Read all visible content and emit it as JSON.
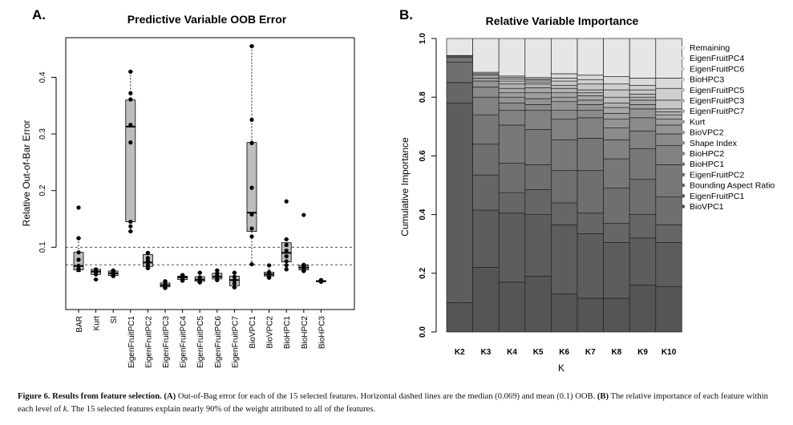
{
  "chart_data": [
    {
      "type": "box",
      "panel_label": "A.",
      "title": "Predictive Variable OOB Error",
      "ylabel": "Relative Out-of-Bar Error",
      "xlabel": "",
      "ylim": [
        0,
        0.47
      ],
      "yticks": [
        0.1,
        0.2,
        0.3,
        0.4
      ],
      "ytick_labels": [
        "0.1",
        "0.2",
        "0.3",
        "0.4"
      ],
      "hlines": [
        {
          "y": 0.1,
          "style": "dashed"
        },
        {
          "y": 0.069,
          "style": "dashed"
        }
      ],
      "grid": false,
      "categories": [
        "BAR",
        "Kurt",
        "SI",
        "EigenFruitPC1",
        "EigenFruitPC2",
        "EigenFruitPC3",
        "EigenFruitPC4",
        "EigenFruitPC5",
        "EigenFruitPC6",
        "EigenFruitPC7",
        "BioVPC1",
        "BioVPC2",
        "BioHPC1",
        "BioHPC2",
        "BioHPC3"
      ],
      "boxes": [
        {
          "q1": 0.06,
          "median": 0.067,
          "q3": 0.091,
          "whisker_low": 0.057,
          "whisker_high": 0.116,
          "points": [
            0.17,
            0.116,
            0.091,
            0.078,
            0.067,
            0.062,
            0.06
          ]
        },
        {
          "q1": 0.052,
          "median": 0.057,
          "q3": 0.061,
          "whisker_low": 0.043,
          "whisker_high": 0.061,
          "points": [
            0.061,
            0.058,
            0.057,
            0.052,
            0.043
          ]
        },
        {
          "q1": 0.05,
          "median": 0.054,
          "q3": 0.058,
          "whisker_low": 0.049,
          "whisker_high": 0.059,
          "points": [
            0.059,
            0.056,
            0.054,
            0.051,
            0.049
          ]
        },
        {
          "q1": 0.145,
          "median": 0.313,
          "q3": 0.36,
          "whisker_low": 0.128,
          "whisker_high": 0.41,
          "points": [
            0.41,
            0.372,
            0.361,
            0.316,
            0.285,
            0.145,
            0.137,
            0.128
          ]
        },
        {
          "q1": 0.066,
          "median": 0.073,
          "q3": 0.087,
          "whisker_low": 0.063,
          "whisker_high": 0.09,
          "points": [
            0.09,
            0.081,
            0.076,
            0.073,
            0.068,
            0.063
          ]
        },
        {
          "q1": 0.03,
          "median": 0.033,
          "q3": 0.037,
          "whisker_low": 0.028,
          "whisker_high": 0.04,
          "points": [
            0.04,
            0.035,
            0.033,
            0.03,
            0.028
          ]
        },
        {
          "q1": 0.043,
          "median": 0.047,
          "q3": 0.049,
          "whisker_low": 0.04,
          "whisker_high": 0.051,
          "points": [
            0.051,
            0.048,
            0.046,
            0.043,
            0.041
          ]
        },
        {
          "q1": 0.04,
          "median": 0.043,
          "q3": 0.048,
          "whisker_low": 0.038,
          "whisker_high": 0.055,
          "points": [
            0.055,
            0.047,
            0.043,
            0.04,
            0.038
          ]
        },
        {
          "q1": 0.044,
          "median": 0.048,
          "q3": 0.054,
          "whisker_low": 0.042,
          "whisker_high": 0.059,
          "points": [
            0.059,
            0.054,
            0.05,
            0.046,
            0.042
          ]
        },
        {
          "q1": 0.032,
          "median": 0.042,
          "q3": 0.049,
          "whisker_low": 0.029,
          "whisker_high": 0.055,
          "points": [
            0.055,
            0.048,
            0.042,
            0.036,
            0.029
          ]
        },
        {
          "q1": 0.128,
          "median": 0.161,
          "q3": 0.285,
          "whisker_low": 0.07,
          "whisker_high": 0.455,
          "points": [
            0.455,
            0.325,
            0.284,
            0.205,
            0.158,
            0.133,
            0.119,
            0.07
          ]
        },
        {
          "q1": 0.049,
          "median": 0.052,
          "q3": 0.056,
          "whisker_low": 0.046,
          "whisker_high": 0.068,
          "points": [
            0.068,
            0.056,
            0.052,
            0.049,
            0.046
          ]
        },
        {
          "q1": 0.074,
          "median": 0.09,
          "q3": 0.108,
          "whisker_low": 0.061,
          "whisker_high": 0.114,
          "points": [
            0.181,
            0.114,
            0.104,
            0.094,
            0.084,
            0.075,
            0.068,
            0.061
          ]
        },
        {
          "q1": 0.06,
          "median": 0.064,
          "q3": 0.068,
          "whisker_low": 0.058,
          "whisker_high": 0.069,
          "points": [
            0.157,
            0.069,
            0.066,
            0.063,
            0.06,
            0.058
          ]
        },
        {
          "q1": 0.039,
          "median": 0.04,
          "q3": 0.041,
          "whisker_low": 0.039,
          "whisker_high": 0.042,
          "points": [
            0.042,
            0.04,
            0.039
          ]
        }
      ]
    },
    {
      "type": "stacked_bar",
      "panel_label": "B.",
      "title": "Relative Variable Importance",
      "xlabel": "K",
      "ylabel": "Cumulative Importance",
      "ylim": [
        0,
        1.0
      ],
      "yticks": [
        0.0,
        0.2,
        0.4,
        0.6,
        0.8,
        1.0
      ],
      "ytick_labels": [
        "0.0",
        "0.2",
        "0.4",
        "0.6",
        "0.8",
        "1.0"
      ],
      "grid": false,
      "legend_position": "right",
      "categories": [
        "K2",
        "K3",
        "K4",
        "K5",
        "K6",
        "K7",
        "K8",
        "K9",
        "K10"
      ],
      "legend": [
        "Remaining",
        "EigenFruitPC4",
        "EigenFruitPC6",
        "BioHPC3",
        "EigenFruitPC5",
        "EigenFruitPC3",
        "EigenFruitPC7",
        "Kurt",
        "BioVPC2",
        "Shape Index",
        "BioHPC2",
        "BioHPC1",
        "EigenFruitPC2",
        "Bounding Aspect Ratio",
        "EigenFruitPC1",
        "BioVPC1"
      ],
      "series_order_bottom_to_top": [
        "BioVPC1",
        "EigenFruitPC1",
        "Bounding Aspect Ratio",
        "EigenFruitPC2",
        "BioHPC1",
        "BioHPC2",
        "Shape Index",
        "BioVPC2",
        "Kurt",
        "EigenFruitPC7",
        "EigenFruitPC3",
        "EigenFruitPC5",
        "BioHPC3",
        "EigenFruitPC6",
        "EigenFruitPC4",
        "Remaining"
      ],
      "colors": {
        "BioVPC1": "#555555",
        "EigenFruitPC1": "#5d5d5d",
        "Bounding Aspect Ratio": "#666666",
        "EigenFruitPC2": "#6f6f6f",
        "BioHPC1": "#787878",
        "BioHPC2": "#828282",
        "Shape Index": "#8b8b8b",
        "BioVPC2": "#949494",
        "Kurt": "#9e9e9e",
        "EigenFruitPC7": "#a8a8a8",
        "EigenFruitPC3": "#b2b2b2",
        "EigenFruitPC5": "#bcbcbc",
        "BioHPC3": "#c6c6c6",
        "EigenFruitPC6": "#d0d0d0",
        "EigenFruitPC4": "#dadada",
        "Remaining": "#e6e6e6"
      },
      "cumulative_boundaries": [
        [
          0.1,
          0.78,
          0.85,
          0.92,
          0.935,
          0.94,
          0.942
        ],
        [
          0.22,
          0.415,
          0.535,
          0.64,
          0.74,
          0.8,
          0.835,
          0.855,
          0.865,
          0.875,
          0.88,
          0.885
        ],
        [
          0.17,
          0.405,
          0.475,
          0.575,
          0.705,
          0.755,
          0.78,
          0.8,
          0.815,
          0.83,
          0.845,
          0.855,
          0.862,
          0.867,
          0.872
        ],
        [
          0.19,
          0.4,
          0.485,
          0.57,
          0.69,
          0.755,
          0.775,
          0.795,
          0.815,
          0.832,
          0.845,
          0.852,
          0.858,
          0.862,
          0.867
        ],
        [
          0.13,
          0.365,
          0.44,
          0.55,
          0.655,
          0.725,
          0.755,
          0.785,
          0.8,
          0.815,
          0.83,
          0.84,
          0.855,
          0.865,
          0.88
        ],
        [
          0.115,
          0.335,
          0.405,
          0.55,
          0.66,
          0.73,
          0.755,
          0.775,
          0.79,
          0.805,
          0.815,
          0.825,
          0.845,
          0.86,
          0.875
        ],
        [
          0.115,
          0.305,
          0.37,
          0.49,
          0.59,
          0.655,
          0.695,
          0.725,
          0.745,
          0.765,
          0.78,
          0.8,
          0.825,
          0.845,
          0.87
        ],
        [
          0.16,
          0.32,
          0.4,
          0.52,
          0.625,
          0.685,
          0.73,
          0.76,
          0.775,
          0.79,
          0.8,
          0.81,
          0.825,
          0.84,
          0.865
        ],
        [
          0.155,
          0.305,
          0.365,
          0.46,
          0.57,
          0.635,
          0.675,
          0.705,
          0.725,
          0.74,
          0.75,
          0.76,
          0.79,
          0.83,
          0.865
        ]
      ]
    }
  ],
  "caption": {
    "label": "Figure 6.",
    "title": "Results from feature selection.",
    "part_a_label": "(A)",
    "part_a_text_1": "Out-of-Bag error for each of the 15 selected features. Horizontal dashed lines are the median (",
    "median_value": "0.069",
    "part_a_text_2": ") and mean (",
    "mean_value": "0.1",
    "part_a_text_3": ") OOB.",
    "part_b_label": "(B)",
    "part_b_text_1": "The relative importance of each feature within each level of",
    "k_symbol": "k",
    "part_b_text_2": ". The",
    "count_value": "15",
    "part_b_text_3": "selected features explain nearly",
    "percent_value": "90%",
    "part_b_text_4": "of the weight attributed to all of the features."
  }
}
